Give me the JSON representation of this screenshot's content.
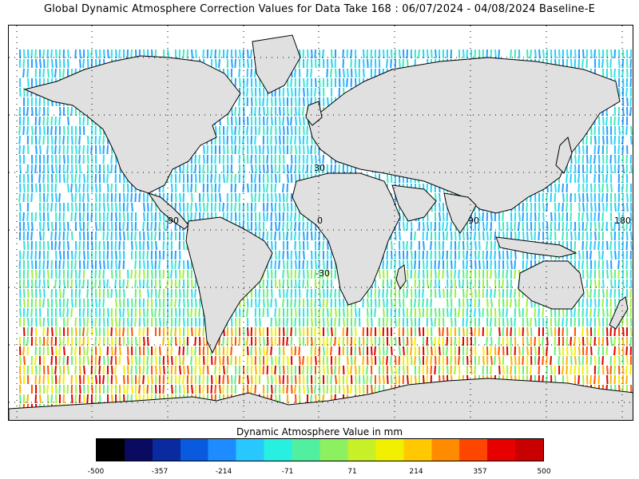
{
  "title": "Global Dynamic Atmosphere Correction Values for Data Take 168 : 06/07/2024 - 04/08/2024 Baseline-E",
  "map": {
    "projection": "equirectangular",
    "longitude_labels": [
      "-90",
      "0",
      "90",
      "180"
    ],
    "latitude_labels": [
      "30",
      "-30"
    ],
    "land_color": "#e0e0e0",
    "coastline_color": "#000000",
    "grid_style": "dotted"
  },
  "colorbar": {
    "title": "Dynamic Atmosphere Value in mm",
    "tick_labels": [
      "-500",
      "-357",
      "-214",
      "-71",
      "71",
      "214",
      "357",
      "500"
    ],
    "min": -500,
    "max": 500,
    "colors": [
      "#000000",
      "#0a0a60",
      "#0a2aa0",
      "#0a5ae0",
      "#1e8cff",
      "#28c8ff",
      "#28f0e0",
      "#50f0a0",
      "#8cf060",
      "#c8f028",
      "#f0f000",
      "#ffc800",
      "#ff8c00",
      "#ff4600",
      "#e60000",
      "#c80000"
    ]
  }
}
